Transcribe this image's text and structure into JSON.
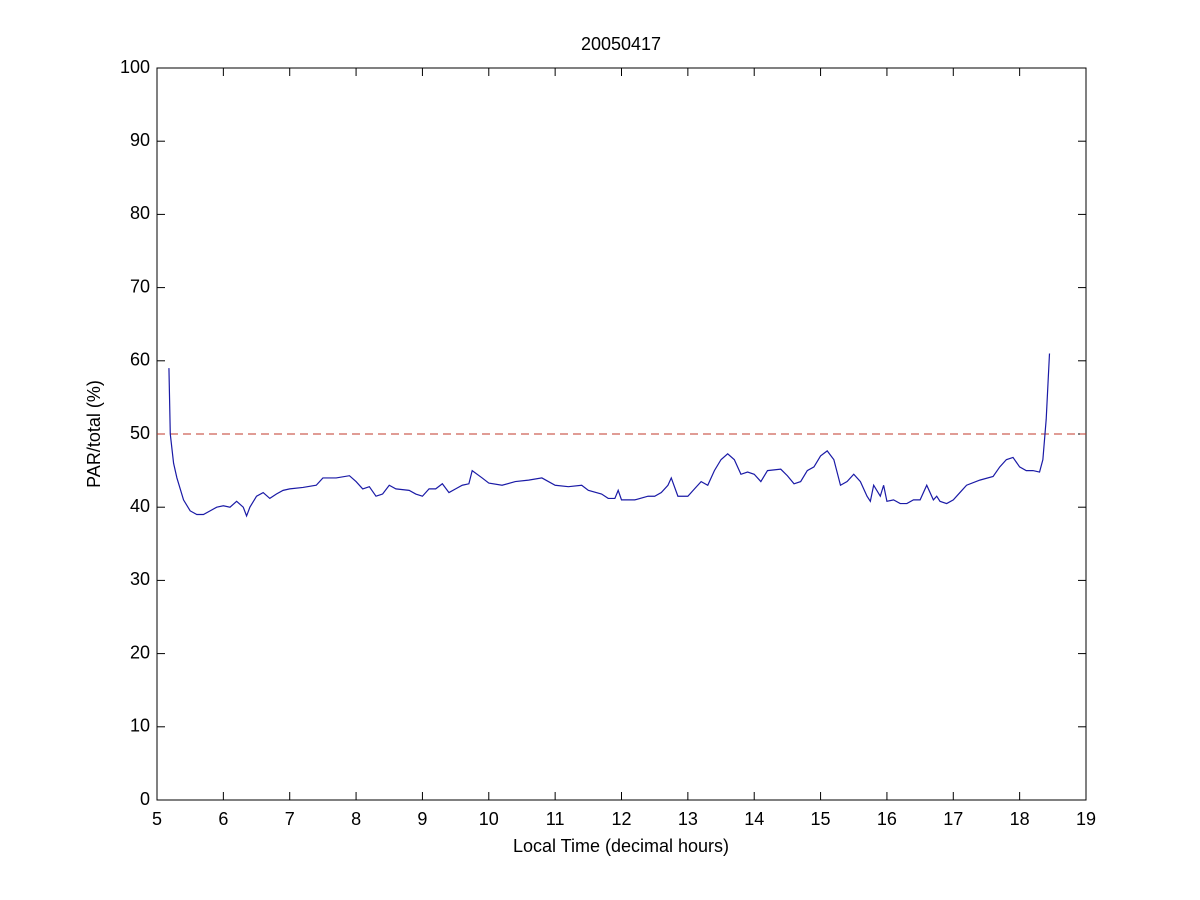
{
  "chart_data": {
    "type": "line",
    "title": "20050417",
    "x_label": "Local Time (decimal hours)",
    "y_label": "PAR/total (%)",
    "xlim": [
      5,
      19
    ],
    "ylim": [
      0,
      100
    ],
    "xticks": [
      5,
      6,
      7,
      8,
      9,
      10,
      11,
      12,
      13,
      14,
      15,
      16,
      17,
      18,
      19
    ],
    "yticks": [
      0,
      10,
      20,
      30,
      40,
      50,
      60,
      70,
      80,
      90,
      100
    ],
    "grid": false,
    "reference_line": {
      "value": 50,
      "color": "#c0392b",
      "style": "dashed"
    },
    "series": [
      {
        "color": "#1a1aa6",
        "x": [
          5.18,
          5.2,
          5.25,
          5.3,
          5.4,
          5.5,
          5.6,
          5.7,
          5.8,
          5.9,
          6.0,
          6.1,
          6.2,
          6.3,
          6.35,
          6.4,
          6.5,
          6.6,
          6.7,
          6.8,
          6.9,
          7.0,
          7.2,
          7.4,
          7.5,
          7.7,
          7.9,
          8.0,
          8.1,
          8.2,
          8.3,
          8.4,
          8.5,
          8.6,
          8.8,
          8.9,
          9.0,
          9.1,
          9.2,
          9.3,
          9.4,
          9.5,
          9.6,
          9.7,
          9.75,
          9.9,
          10.0,
          10.2,
          10.4,
          10.6,
          10.8,
          11.0,
          11.2,
          11.4,
          11.5,
          11.7,
          11.8,
          11.9,
          11.95,
          12.0,
          12.2,
          12.4,
          12.5,
          12.6,
          12.7,
          12.75,
          12.85,
          13.0,
          13.1,
          13.2,
          13.3,
          13.4,
          13.5,
          13.6,
          13.7,
          13.8,
          13.9,
          14.0,
          14.1,
          14.2,
          14.4,
          14.5,
          14.6,
          14.7,
          14.8,
          14.9,
          15.0,
          15.1,
          15.2,
          15.3,
          15.4,
          15.5,
          15.6,
          15.7,
          15.75,
          15.8,
          15.9,
          15.95,
          16.0,
          16.1,
          16.2,
          16.3,
          16.4,
          16.5,
          16.6,
          16.7,
          16.75,
          16.8,
          16.9,
          17.0,
          17.1,
          17.2,
          17.4,
          17.6,
          17.7,
          17.8,
          17.9,
          18.0,
          18.1,
          18.2,
          18.3,
          18.35,
          18.4,
          18.45
        ],
        "values": [
          59,
          50,
          46,
          44,
          41,
          39.5,
          39,
          39,
          39.5,
          40,
          40.2,
          40,
          40.8,
          40,
          38.8,
          40,
          41.5,
          42,
          41.2,
          41.8,
          42.3,
          42.5,
          42.7,
          43,
          44,
          44,
          44.3,
          43.5,
          42.5,
          42.8,
          41.5,
          41.8,
          43,
          42.5,
          42.3,
          41.8,
          41.5,
          42.5,
          42.5,
          43.2,
          42,
          42.5,
          43,
          43.2,
          45,
          44,
          43.3,
          43,
          43.5,
          43.7,
          44,
          43,
          42.8,
          43,
          42.3,
          41.8,
          41.2,
          41.2,
          42.3,
          41,
          41,
          41.5,
          41.5,
          42,
          43,
          44,
          41.5,
          41.5,
          42.5,
          43.5,
          43,
          45,
          46.5,
          47.3,
          46.5,
          44.5,
          44.8,
          44.5,
          43.5,
          45,
          45.2,
          44.3,
          43.2,
          43.5,
          45,
          45.5,
          47,
          47.7,
          46.5,
          43,
          43.5,
          44.5,
          43.5,
          41.5,
          40.8,
          43,
          41.5,
          43,
          40.8,
          41,
          40.5,
          40.5,
          41,
          41,
          43,
          41,
          41.5,
          40.8,
          40.5,
          41,
          42,
          43,
          43.7,
          44.2,
          45.5,
          46.5,
          46.8,
          45.5,
          45,
          45,
          44.8,
          46.5,
          52,
          61
        ]
      }
    ]
  }
}
